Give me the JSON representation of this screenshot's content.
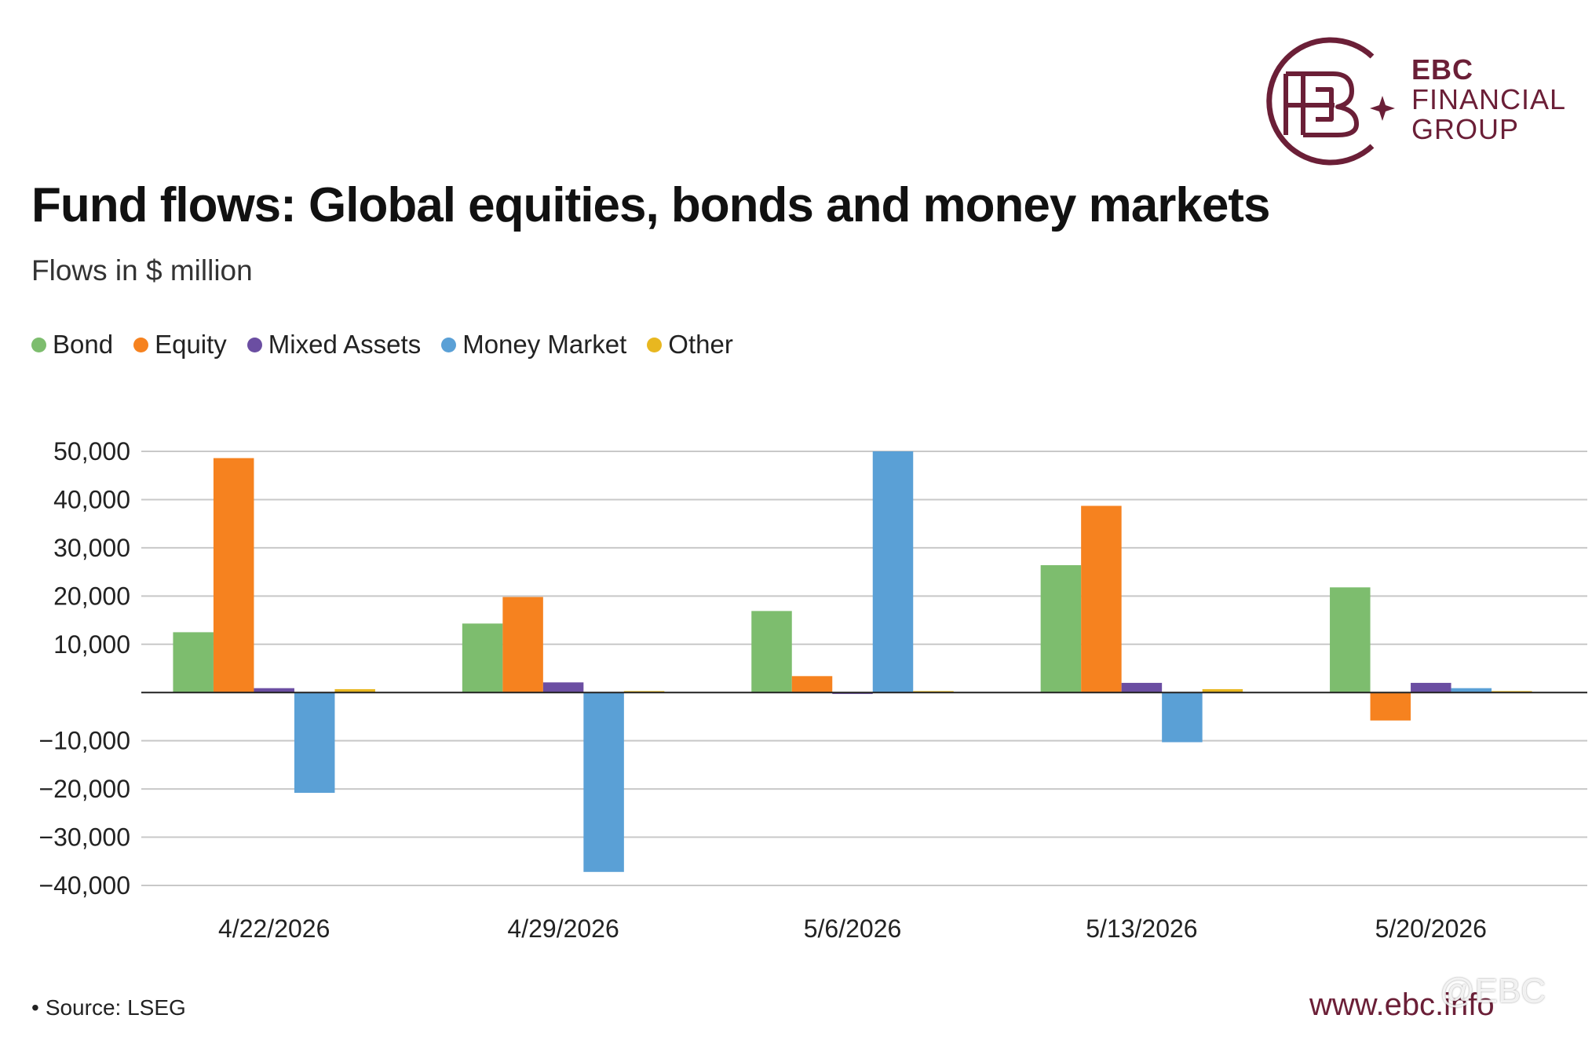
{
  "brand": {
    "line1": "EBC",
    "line2": "FINANCIAL",
    "line3": "GROUP",
    "color": "#6b1f37"
  },
  "footer": {
    "source": "Source: LSEG",
    "website": "www.ebc.info",
    "watermark": "@EBC"
  },
  "chart_data": {
    "type": "bar",
    "title": "Fund flows: Global equities, bonds and money markets",
    "subtitle": "Flows in $ million",
    "categories": [
      "4/22/2026",
      "4/29/2026",
      "5/6/2026",
      "5/13/2026",
      "5/20/2026"
    ],
    "series": [
      {
        "name": "Bond",
        "color": "#7dbd6e",
        "values": [
          12500,
          14300,
          16900,
          26400,
          21800
        ]
      },
      {
        "name": "Equity",
        "color": "#f6821f",
        "values": [
          48600,
          19800,
          3400,
          38700,
          -5800
        ]
      },
      {
        "name": "Mixed Assets",
        "color": "#6b4ea2",
        "values": [
          900,
          2100,
          -300,
          2000,
          2000
        ]
      },
      {
        "name": "Money Market",
        "color": "#5aa0d6",
        "values": [
          -20800,
          -37200,
          50000,
          -10300,
          900
        ]
      },
      {
        "name": "Other",
        "color": "#e8b720",
        "values": [
          700,
          300,
          300,
          700,
          300
        ]
      }
    ],
    "y_ticks": [
      50000,
      40000,
      30000,
      20000,
      10000,
      -10000,
      -20000,
      -30000,
      -40000
    ],
    "y_tick_labels": [
      "50,000",
      "40,000",
      "30,000",
      "20,000",
      "10,000",
      "−10,000",
      "−20,000",
      "−30,000",
      "−40,000"
    ],
    "ylim": [
      -40000,
      50000
    ],
    "grid": true,
    "legend_position": "top-left"
  }
}
